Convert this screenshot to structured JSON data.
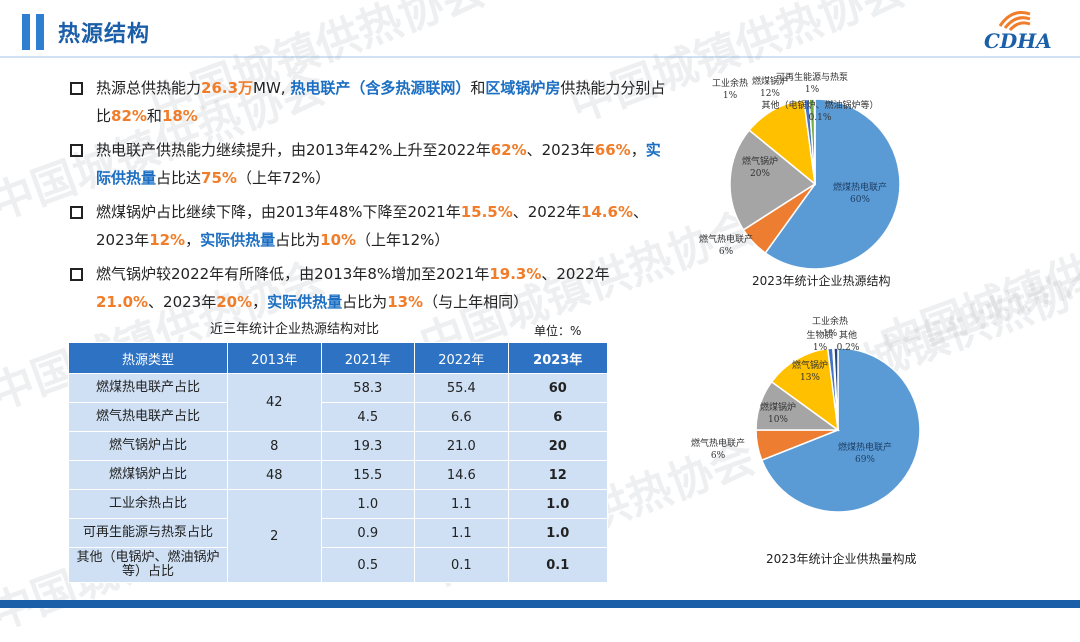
{
  "header": {
    "title": "热源结构",
    "logo_text": "CDHA"
  },
  "watermark": "中国城镇供热协会",
  "bullets": [
    {
      "parts": [
        {
          "t": "热源总供热能力",
          "s": ""
        },
        {
          "t": "26.3万",
          "s": "o"
        },
        {
          "t": "MW, ",
          "s": ""
        },
        {
          "t": "热电联产（含多热源联网）",
          "s": "b"
        },
        {
          "t": "和",
          "s": ""
        },
        {
          "t": "区域锅炉房",
          "s": "b"
        },
        {
          "t": "供热能力分别占比",
          "s": ""
        },
        {
          "t": "82%",
          "s": "o"
        },
        {
          "t": "和",
          "s": ""
        },
        {
          "t": "18%",
          "s": "o"
        }
      ]
    },
    {
      "parts": [
        {
          "t": "热电联产供热能力继续提升，由2013年42%上升至2022年",
          "s": ""
        },
        {
          "t": "62%",
          "s": "o"
        },
        {
          "t": "、2023年",
          "s": ""
        },
        {
          "t": "66%",
          "s": "o"
        },
        {
          "t": "，",
          "s": ""
        },
        {
          "t": "实际供热量",
          "s": "b"
        },
        {
          "t": "占比达",
          "s": ""
        },
        {
          "t": "75%",
          "s": "o"
        },
        {
          "t": "（上年72%）",
          "s": ""
        }
      ]
    },
    {
      "parts": [
        {
          "t": "燃煤锅炉占比继续下降，由2013年48%下降至2021年",
          "s": ""
        },
        {
          "t": "15.5%",
          "s": "o"
        },
        {
          "t": "、2022年",
          "s": ""
        },
        {
          "t": "14.6%",
          "s": "o"
        },
        {
          "t": "、2023年",
          "s": ""
        },
        {
          "t": "12%",
          "s": "o"
        },
        {
          "t": "，",
          "s": ""
        },
        {
          "t": "实际供热量",
          "s": "b"
        },
        {
          "t": "占比为",
          "s": ""
        },
        {
          "t": "10%",
          "s": "o"
        },
        {
          "t": "（上年12%）",
          "s": ""
        }
      ]
    },
    {
      "parts": [
        {
          "t": "燃气锅炉较2022年有所降低，由2013年8%增加至2021年",
          "s": ""
        },
        {
          "t": "19.3%",
          "s": "o"
        },
        {
          "t": "、2022年",
          "s": ""
        },
        {
          "t": "21.0%",
          "s": "o"
        },
        {
          "t": "、2023年",
          "s": ""
        },
        {
          "t": "20%",
          "s": "o"
        },
        {
          "t": "，",
          "s": ""
        },
        {
          "t": "实际供热量",
          "s": "b"
        },
        {
          "t": "占比为",
          "s": ""
        },
        {
          "t": "13%",
          "s": "o"
        },
        {
          "t": "（与上年相同）",
          "s": ""
        }
      ]
    }
  ],
  "table": {
    "caption": "近三年统计企业热源结构对比",
    "unit": "单位：%",
    "headers": [
      "热源类型",
      "2013年",
      "2021年",
      "2022年",
      "2023年"
    ],
    "rows": [
      {
        "label": "燃煤热电联产占比",
        "v2021": "58.3",
        "v2022": "55.4",
        "v2023": "60"
      },
      {
        "label": "燃气热电联产占比",
        "v2021": "4.5",
        "v2022": "6.6",
        "v2023": "6"
      },
      {
        "label": "燃气锅炉占比",
        "v2021": "19.3",
        "v2022": "21.0",
        "v2023": "20"
      },
      {
        "label": "燃煤锅炉占比",
        "v2021": "15.5",
        "v2022": "14.6",
        "v2023": "12"
      },
      {
        "label": "工业余热占比",
        "v2021": "1.0",
        "v2022": "1.1",
        "v2023": "1.0"
      },
      {
        "label": "可再生能源与热泵占比",
        "v2021": "0.9",
        "v2022": "1.1",
        "v2023": "1.0"
      },
      {
        "label": "其他（电锅炉、燃油锅炉等）占比",
        "v2021": "0.5",
        "v2022": "0.1",
        "v2023": "0.1"
      }
    ],
    "merged_2013": [
      {
        "value": "42",
        "rows": 2
      },
      {
        "value": "8",
        "rows": 1
      },
      {
        "value": "48",
        "rows": 1
      },
      {
        "value": "2",
        "rows": 3
      }
    ]
  },
  "chart_data": [
    {
      "type": "pie",
      "title": "2023年统计企业热源结构",
      "slices": [
        {
          "name": "燃煤热电联产",
          "value": 60,
          "label": "60%",
          "color": "#5b9bd5"
        },
        {
          "name": "燃气热电联产",
          "value": 6,
          "label": "6%",
          "color": "#ed7d31"
        },
        {
          "name": "燃气锅炉",
          "value": 20,
          "label": "20%",
          "color": "#a5a5a5"
        },
        {
          "name": "燃煤锅炉",
          "value": 12,
          "label": "12%",
          "color": "#ffc000"
        },
        {
          "name": "工业余热",
          "value": 1,
          "label": "1%",
          "color": "#4472c4"
        },
        {
          "name": "可再生能源与热泵",
          "value": 1,
          "label": "1%",
          "color": "#70ad47"
        },
        {
          "name": "其他（电锅炉、燃油锅炉等）",
          "value": 0.1,
          "label": "0.1%",
          "color": "#264478"
        }
      ]
    },
    {
      "type": "pie",
      "title": "2023年统计企业供热量构成",
      "slices": [
        {
          "name": "燃煤热电联产",
          "value": 69,
          "label": "69%",
          "color": "#5b9bd5"
        },
        {
          "name": "燃气热电联产",
          "value": 6,
          "label": "6%",
          "color": "#ed7d31"
        },
        {
          "name": "燃煤锅炉",
          "value": 10,
          "label": "10%",
          "color": "#a5a5a5"
        },
        {
          "name": "燃气锅炉",
          "value": 13,
          "label": "13%",
          "color": "#ffc000"
        },
        {
          "name": "工业余热",
          "value": 1,
          "label": "1%",
          "color": "#4472c4"
        },
        {
          "name": "其他",
          "value": 0.2,
          "label": "0.2%",
          "color": "#70ad47"
        },
        {
          "name": "生物质",
          "value": 0.8,
          "label": "1%",
          "color": "#264478"
        }
      ]
    }
  ]
}
